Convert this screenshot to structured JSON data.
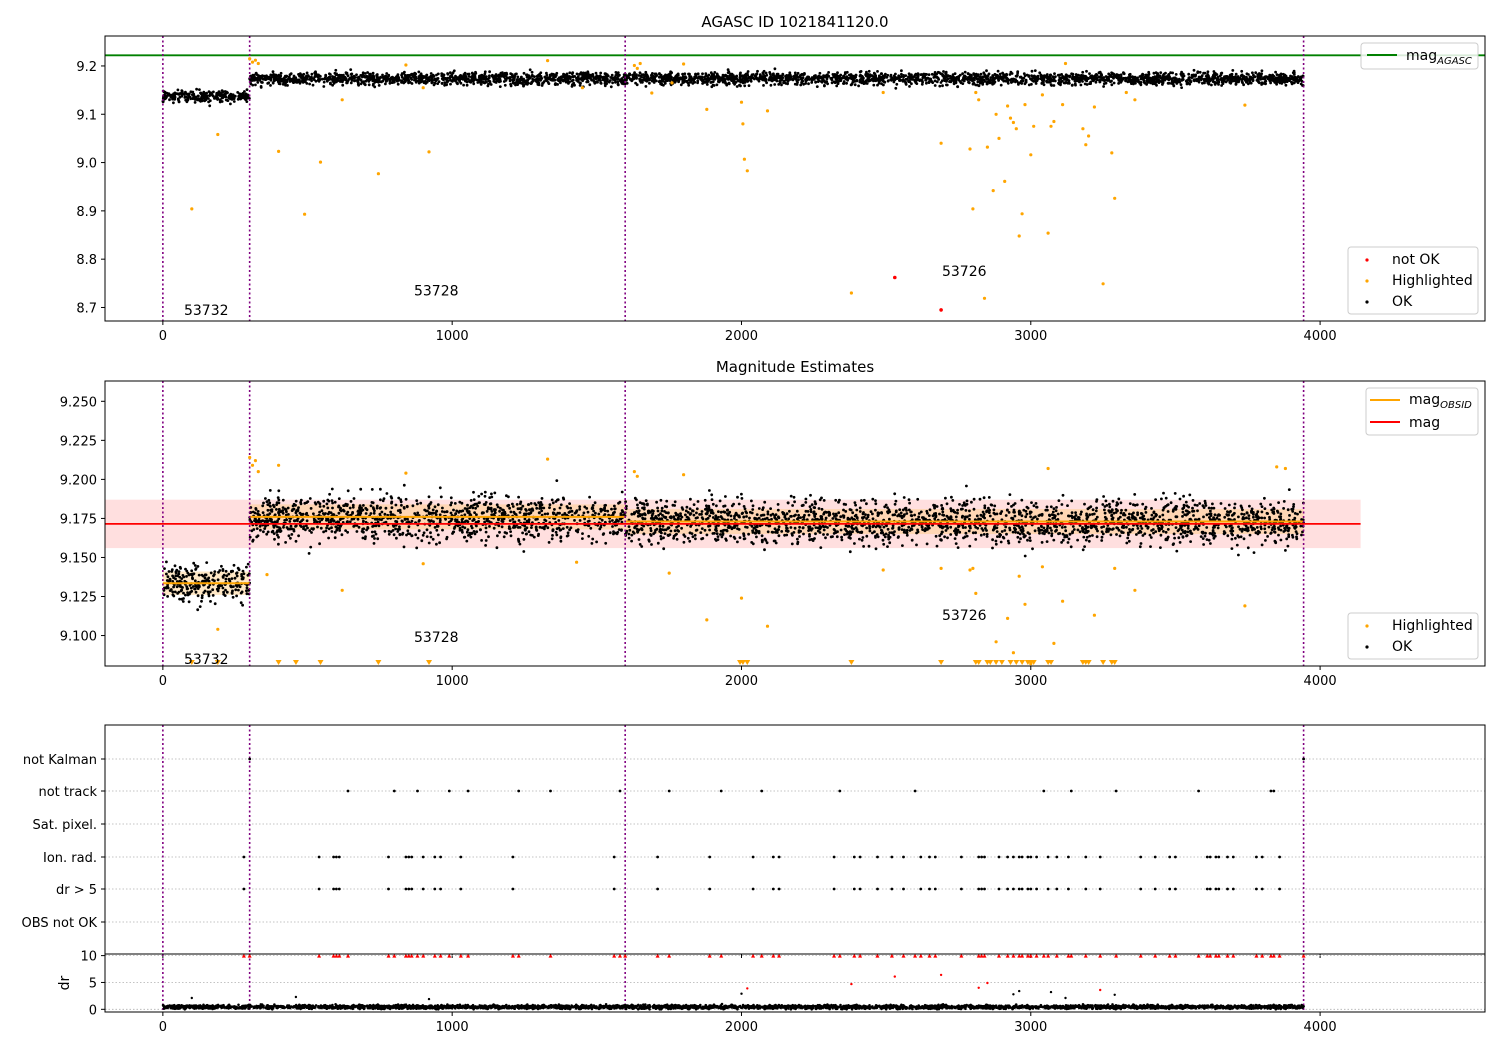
{
  "chart_data": [
    {
      "type": "scatter",
      "title": "AGASC ID 1021841120.0",
      "xlabel": "",
      "ylabel": "",
      "xlim": [
        -200,
        4570
      ],
      "ylim": [
        8.672,
        9.262
      ],
      "xticks": [
        0,
        1000,
        2000,
        3000,
        4000
      ],
      "yticks": [
        8.7,
        8.8,
        8.9,
        9.0,
        9.1,
        9.2
      ],
      "ytick_labels": [
        "8.7",
        "8.8",
        "8.9",
        "9.0",
        "9.1",
        "9.2"
      ],
      "grid": false,
      "obsid_boundaries": [
        0,
        300,
        1598,
        3943
      ],
      "obsid_labels": [
        {
          "text": "53732",
          "x": 150,
          "y": 8.695
        },
        {
          "text": "53728",
          "x": 945,
          "y": 8.735
        },
        {
          "text": "53726",
          "x": 2770,
          "y": 8.775
        }
      ],
      "hlines": [
        {
          "name": "mag_AGASC",
          "y": 9.222,
          "color": "#008000"
        }
      ],
      "ok_segments": [
        {
          "x0": 0,
          "x1": 300,
          "mean": 9.137,
          "sd": 0.009,
          "count": 260
        },
        {
          "x0": 300,
          "x1": 3943,
          "mean": 9.174,
          "sd": 0.009,
          "count": 3300
        }
      ],
      "highlighted": {
        "x": [
          100,
          190,
          300,
          310,
          320,
          330,
          400,
          490,
          545,
          620,
          745,
          840,
          900,
          920,
          1330,
          1450,
          1630,
          1640,
          1650,
          1690,
          1760,
          1800,
          1880,
          2000,
          2005,
          2010,
          2020,
          2090,
          2380,
          2490,
          2690,
          2790,
          2800,
          2810,
          2820,
          2840,
          2850,
          2870,
          2880,
          2890,
          2910,
          2920,
          2930,
          2940,
          2950,
          2960,
          2970,
          2980,
          3000,
          3010,
          3040,
          3060,
          3070,
          3080,
          3110,
          3120,
          3180,
          3190,
          3200,
          3220,
          3250,
          3280,
          3290,
          3330,
          3360,
          3740
        ],
        "y": [
          8.904,
          9.058,
          9.215,
          9.208,
          9.212,
          9.205,
          9.023,
          8.893,
          9.001,
          9.13,
          8.977,
          9.202,
          9.155,
          9.022,
          9.211,
          9.155,
          9.201,
          9.195,
          9.205,
          9.144,
          9.165,
          9.204,
          9.11,
          9.125,
          9.08,
          9.007,
          8.983,
          9.107,
          8.73,
          9.145,
          9.04,
          9.028,
          8.904,
          9.145,
          9.13,
          8.719,
          9.032,
          8.942,
          9.1,
          9.05,
          8.961,
          9.117,
          9.092,
          9.083,
          9.07,
          8.848,
          8.894,
          9.12,
          9.016,
          9.075,
          9.14,
          8.854,
          9.075,
          9.085,
          9.12,
          9.205,
          9.07,
          9.037,
          9.055,
          9.115,
          8.749,
          9.02,
          8.926,
          9.145,
          9.13,
          9.119
        ],
        "color": "#ffa500"
      },
      "not_ok": {
        "x": [
          2530,
          2690
        ],
        "y": [
          8.762,
          8.695
        ],
        "color": "#ff0000"
      },
      "legends": [
        {
          "position": "upper right",
          "entries": [
            {
              "label": "mag",
              "sub": "AGASC",
              "marker": "line",
              "color": "#008000"
            }
          ]
        },
        {
          "position": "lower right",
          "entries": [
            {
              "label": "not OK",
              "marker": "dot",
              "color": "#ff0000"
            },
            {
              "label": "Highlighted",
              "marker": "dot",
              "color": "#ffa500"
            },
            {
              "label": "OK",
              "marker": "dot",
              "color": "#000000"
            }
          ]
        }
      ]
    },
    {
      "type": "scatter",
      "title": "Magnitude Estimates",
      "xlabel": "",
      "ylabel": "",
      "xlim": [
        -200,
        4570
      ],
      "ylim": [
        9.0805,
        9.263
      ],
      "xticks": [
        0,
        1000,
        2000,
        3000,
        4000
      ],
      "yticks": [
        9.1,
        9.125,
        9.15,
        9.175,
        9.2,
        9.225,
        9.25
      ],
      "ytick_labels": [
        "9.100",
        "9.125",
        "9.150",
        "9.175",
        "9.200",
        "9.225",
        "9.250"
      ],
      "grid": false,
      "obsid_boundaries": [
        0,
        300,
        1598,
        3943
      ],
      "obsid_labels": [
        {
          "text": "53732",
          "x": 150,
          "y": 9.085
        },
        {
          "text": "53728",
          "x": 945,
          "y": 9.099
        },
        {
          "text": "53726",
          "x": 2770,
          "y": 9.113
        }
      ],
      "mag": {
        "y": 9.1715,
        "band": [
          9.156,
          9.187
        ],
        "x0": -200,
        "x1": 4140,
        "color": "#ff0000",
        "band_color": "#ffdcdc"
      },
      "mag_obsid": [
        {
          "x0": 0,
          "x1": 300,
          "y": 9.1335,
          "band": [
            9.126,
            9.141
          ]
        },
        {
          "x0": 300,
          "x1": 1598,
          "y": 9.176,
          "band": [
            9.168,
            9.184
          ]
        },
        {
          "x0": 1598,
          "x1": 3943,
          "y": 9.173,
          "band": [
            9.165,
            9.181
          ]
        }
      ],
      "mag_obsid_color": "#ffa500",
      "ok_segments": [
        {
          "x0": 0,
          "x1": 300,
          "mean": 9.134,
          "sd": 0.009,
          "count": 260
        },
        {
          "x0": 300,
          "x1": 1598,
          "mean": 9.175,
          "sd": 0.01,
          "count": 1150
        },
        {
          "x0": 1598,
          "x1": 3943,
          "mean": 9.173,
          "sd": 0.01,
          "count": 2100
        }
      ],
      "highlighted": {
        "x": [
          190,
          300,
          310,
          320,
          330,
          360,
          400,
          620,
          840,
          900,
          1330,
          1430,
          1630,
          1640,
          1750,
          1800,
          1880,
          2000,
          2090,
          2490,
          2690,
          2790,
          2800,
          2810,
          2880,
          2920,
          2940,
          2960,
          2980,
          3000,
          3040,
          3060,
          3080,
          3110,
          3220,
          3290,
          3360,
          3740,
          3850,
          3880
        ],
        "y": [
          9.104,
          9.214,
          9.209,
          9.212,
          9.205,
          9.139,
          9.209,
          9.129,
          9.204,
          9.146,
          9.213,
          9.147,
          9.205,
          9.202,
          9.14,
          9.203,
          9.11,
          9.124,
          9.106,
          9.142,
          9.143,
          9.142,
          9.143,
          9.127,
          9.096,
          9.111,
          9.089,
          9.138,
          9.12,
          9.082,
          9.144,
          9.207,
          9.095,
          9.122,
          9.113,
          9.143,
          9.129,
          9.119,
          9.208,
          9.207
        ],
        "color": "#ffa500"
      },
      "below_range_markers": {
        "x": [
          100,
          190,
          400,
          460,
          545,
          745,
          920,
          1995,
          2005,
          2020,
          2380,
          2690,
          2810,
          2820,
          2850,
          2860,
          2880,
          2900,
          2930,
          2950,
          2970,
          2990,
          3000,
          3010,
          3060,
          3070,
          3180,
          3190,
          3200,
          3250,
          3280,
          3290
        ],
        "color": "#ffa500"
      },
      "legends": [
        {
          "position": "upper right",
          "entries": [
            {
              "label": "mag",
              "sub": "OBSID",
              "marker": "line",
              "color": "#ffa500"
            },
            {
              "label": "mag",
              "sub": "",
              "marker": "line",
              "color": "#ff0000"
            }
          ]
        },
        {
          "position": "lower right",
          "entries": [
            {
              "label": "Highlighted",
              "marker": "dot",
              "color": "#ffa500"
            },
            {
              "label": "OK",
              "marker": "dot",
              "color": "#000000"
            }
          ]
        }
      ]
    },
    {
      "type": "scatter",
      "title": "",
      "xlabel": "",
      "ylabel": "",
      "xlim": [
        -200,
        4570
      ],
      "ylim": [
        -0.6,
        1.0
      ],
      "xticks": [
        0,
        1000,
        2000,
        3000,
        4000
      ],
      "categories": [
        "not Kalman",
        "not track",
        "Sat. pixel.",
        "Ion. rad.",
        "dr > 5",
        "OBS not OK"
      ],
      "grid": "horizontal dotted",
      "obsid_boundaries": [
        0,
        300,
        1598,
        3943
      ],
      "series": [
        {
          "name": "not Kalman",
          "x": [
            300,
            3943
          ]
        },
        {
          "name": "not track",
          "x": [
            640,
            800,
            880,
            990,
            1055,
            1230,
            1340,
            1580,
            1750,
            1930,
            2070,
            2340,
            2600,
            3045,
            3140,
            3295,
            3580,
            3830,
            3840
          ]
        },
        {
          "name": "Sat. pixel.",
          "x": []
        },
        {
          "name": "Ion. rad.",
          "x": [
            280,
            540,
            590,
            600,
            610,
            780,
            840,
            850,
            860,
            900,
            940,
            960,
            1030,
            1210,
            1560,
            1710,
            1890,
            2040,
            2110,
            2130,
            2320,
            2390,
            2410,
            2470,
            2520,
            2560,
            2620,
            2650,
            2670,
            2760,
            2820,
            2830,
            2840,
            2890,
            2920,
            2940,
            2960,
            2970,
            2990,
            3000,
            3020,
            3060,
            3090,
            3130,
            3190,
            3240,
            3380,
            3430,
            3480,
            3500,
            3610,
            3620,
            3640,
            3650,
            3680,
            3700,
            3780,
            3800,
            3860
          ]
        },
        {
          "name": "dr > 5",
          "x": [
            280,
            540,
            590,
            600,
            610,
            780,
            840,
            850,
            860,
            900,
            940,
            960,
            1030,
            1210,
            1560,
            1710,
            1890,
            2040,
            2110,
            2130,
            2320,
            2390,
            2410,
            2470,
            2520,
            2560,
            2620,
            2650,
            2670,
            2760,
            2820,
            2830,
            2840,
            2890,
            2920,
            2940,
            2960,
            2970,
            2990,
            3000,
            3020,
            3060,
            3090,
            3130,
            3190,
            3240,
            3380,
            3430,
            3480,
            3500,
            3610,
            3620,
            3640,
            3650,
            3680,
            3700,
            3780,
            3800,
            3860
          ]
        },
        {
          "name": "OBS not OK",
          "x": []
        }
      ]
    },
    {
      "type": "scatter",
      "title": "",
      "xlabel": "",
      "ylabel": "dr",
      "xlim": [
        -200,
        4570
      ],
      "ylim": [
        -0.5,
        10.3
      ],
      "xticks": [
        0,
        1000,
        2000,
        3000,
        4000
      ],
      "xtick_labels": [
        "0",
        "1000",
        "2000",
        "3000",
        "4000"
      ],
      "yticks": [
        0,
        5,
        10
      ],
      "ytick_labels": [
        "0",
        "5",
        "10"
      ],
      "grid": "horizontal dotted",
      "obsid_boundaries": [
        0,
        300,
        1598,
        3943
      ],
      "ok_baseline": {
        "x0": 0,
        "x1": 3943,
        "mean": 0.45,
        "count": 3700
      },
      "outliers": {
        "x": [
          100,
          460,
          920,
          2000,
          2020,
          2380,
          2530,
          2690,
          2820,
          2850,
          2940,
          2960,
          3070,
          3120,
          3240,
          3290
        ],
        "y": [
          2.1,
          2.3,
          1.9,
          2.9,
          3.9,
          4.7,
          6.1,
          6.4,
          4.0,
          4.9,
          2.8,
          3.4,
          3.2,
          2.1,
          3.6,
          2.7
        ]
      },
      "saturated_markers": {
        "y": 10,
        "x": [
          280,
          300,
          540,
          590,
          600,
          610,
          640,
          780,
          800,
          840,
          850,
          860,
          880,
          900,
          940,
          960,
          990,
          1030,
          1055,
          1210,
          1230,
          1340,
          1560,
          1580,
          1598,
          1710,
          1750,
          1890,
          1930,
          2040,
          2070,
          2110,
          2130,
          2320,
          2340,
          2390,
          2410,
          2470,
          2520,
          2560,
          2600,
          2620,
          2650,
          2670,
          2760,
          2820,
          2830,
          2840,
          2890,
          2920,
          2940,
          2960,
          2970,
          2990,
          3000,
          3020,
          3045,
          3060,
          3090,
          3130,
          3140,
          3190,
          3240,
          3295,
          3380,
          3430,
          3480,
          3500,
          3580,
          3610,
          3620,
          3640,
          3650,
          3680,
          3700,
          3780,
          3800,
          3830,
          3840,
          3860,
          3943
        ],
        "color": "#ff0000"
      }
    }
  ]
}
